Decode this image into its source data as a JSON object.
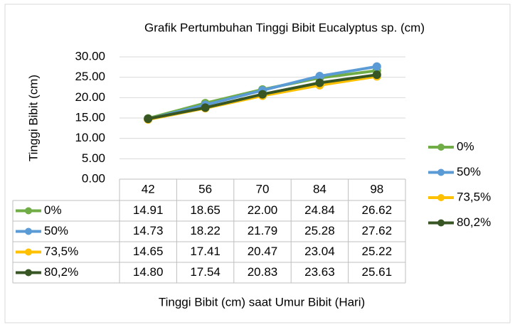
{
  "chart_data": {
    "type": "line",
    "title": "Grafik Pertumbuhan Tinggi Bibit Eucalyptus sp. (cm)",
    "y_label": "Tinggi Bibit  (cm)",
    "x_label": "Tinggi Bibit (cm) saat Umur Bibit (Hari)",
    "categories": [
      "42",
      "56",
      "70",
      "84",
      "98"
    ],
    "series": [
      {
        "name": "0%",
        "color": "#70ad47",
        "values": [
          14.91,
          18.65,
          22.0,
          24.84,
          26.62
        ],
        "value_labels": [
          "14.91",
          "18.65",
          "22.00",
          "24.84",
          "26.62"
        ]
      },
      {
        "name": "50%",
        "color": "#5b9bd5",
        "values": [
          14.73,
          18.22,
          21.79,
          25.28,
          27.62
        ],
        "value_labels": [
          "14.73",
          "18.22",
          "21.79",
          "25.28",
          "27.62"
        ]
      },
      {
        "name": "73,5%",
        "color": "#ffc000",
        "values": [
          14.65,
          17.41,
          20.47,
          23.04,
          25.22
        ],
        "value_labels": [
          "14.65",
          "17.41",
          "20.47",
          "23.04",
          "25.22"
        ]
      },
      {
        "name": "80,2%",
        "color": "#375623",
        "values": [
          14.8,
          17.54,
          20.83,
          23.63,
          25.61
        ],
        "value_labels": [
          "14.80",
          "17.54",
          "20.83",
          "23.63",
          "25.61"
        ]
      }
    ],
    "ylim": [
      0,
      30
    ],
    "yticks": [
      {
        "value": 0,
        "label": "0.00"
      },
      {
        "value": 5,
        "label": "5.00"
      },
      {
        "value": 10,
        "label": "10.00"
      },
      {
        "value": 15,
        "label": "15.00"
      },
      {
        "value": 20,
        "label": "20.00"
      },
      {
        "value": 25,
        "label": "25.00"
      },
      {
        "value": 30,
        "label": "30.00"
      }
    ],
    "grid": true,
    "legend": "right"
  }
}
